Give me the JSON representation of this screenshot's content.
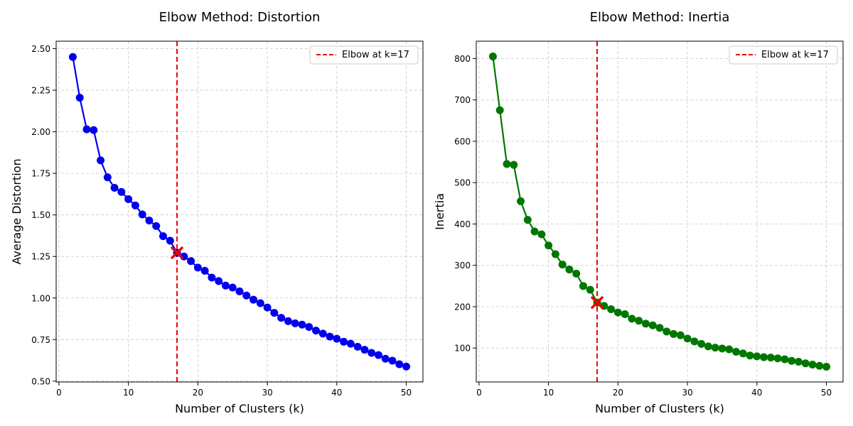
{
  "chart_data": [
    {
      "type": "line",
      "title": "Elbow Method: Distortion",
      "xlabel": "Number of Clusters (k)",
      "ylabel": "Average Distortion",
      "xlim": [
        -0.4,
        52.4
      ],
      "ylim": [
        0.495,
        2.545
      ],
      "xticks": [
        0,
        10,
        20,
        30,
        40,
        50
      ],
      "yticks": [
        0.5,
        0.75,
        1.0,
        1.25,
        1.5,
        1.75,
        2.0,
        2.25,
        2.5
      ],
      "ytick_labels": [
        "0.50",
        "0.75",
        "1.00",
        "1.25",
        "1.50",
        "1.75",
        "2.00",
        "2.25",
        "2.50"
      ],
      "grid": true,
      "legend_position": "top-right",
      "color": "#0000ee",
      "series": [
        {
          "x": [
            2,
            3,
            4,
            5,
            6,
            7,
            8,
            9,
            10,
            11,
            12,
            13,
            14,
            15,
            16,
            17,
            18,
            19,
            20,
            21,
            22,
            23,
            24,
            25,
            26,
            27,
            28,
            29,
            30,
            31,
            32,
            33,
            34,
            35,
            36,
            37,
            38,
            39,
            40,
            41,
            42,
            43,
            44,
            45,
            46,
            47,
            48,
            49,
            50
          ],
          "values": [
            2.45,
            2.205,
            2.015,
            2.01,
            1.828,
            1.726,
            1.663,
            1.638,
            1.595,
            1.557,
            1.503,
            1.466,
            1.433,
            1.372,
            1.345,
            1.272,
            1.25,
            1.222,
            1.183,
            1.164,
            1.123,
            1.102,
            1.075,
            1.063,
            1.04,
            1.015,
            0.99,
            0.969,
            0.943,
            0.911,
            0.881,
            0.861,
            0.848,
            0.84,
            0.826,
            0.804,
            0.786,
            0.768,
            0.755,
            0.737,
            0.725,
            0.707,
            0.689,
            0.67,
            0.657,
            0.635,
            0.623,
            0.602,
            0.588
          ]
        }
      ],
      "elbow": {
        "k": 17,
        "value": 1.272,
        "label": "Elbow at k=17",
        "color": "#ee0000"
      }
    },
    {
      "type": "line",
      "title": "Elbow Method: Inertia",
      "xlabel": "Number of Clusters (k)",
      "ylabel": "Inertia",
      "xlim": [
        -0.4,
        52.4
      ],
      "ylim": [
        18,
        842
      ],
      "xticks": [
        0,
        10,
        20,
        30,
        40,
        50
      ],
      "yticks": [
        100,
        200,
        300,
        400,
        500,
        600,
        700,
        800
      ],
      "ytick_labels": [
        "100",
        "200",
        "300",
        "400",
        "500",
        "600",
        "700",
        "800"
      ],
      "grid": true,
      "legend_position": "top-right",
      "color": "#007700",
      "series": [
        {
          "x": [
            2,
            3,
            4,
            5,
            6,
            7,
            8,
            9,
            10,
            11,
            12,
            13,
            14,
            15,
            16,
            17,
            18,
            19,
            20,
            21,
            22,
            23,
            24,
            25,
            26,
            27,
            28,
            29,
            30,
            31,
            32,
            33,
            34,
            35,
            36,
            37,
            38,
            39,
            40,
            41,
            42,
            43,
            44,
            45,
            46,
            47,
            48,
            49,
            50
          ],
          "values": [
            805,
            675,
            545,
            543,
            455,
            410,
            382,
            375,
            348,
            327,
            302,
            290,
            280,
            250,
            241,
            210,
            202,
            194,
            186,
            182,
            171,
            166,
            159,
            155,
            149,
            140,
            134,
            131,
            123,
            116,
            110,
            104,
            101,
            99,
            97,
            91,
            87,
            82,
            80,
            78,
            77,
            75,
            73,
            69,
            67,
            63,
            60,
            57,
            55
          ]
        }
      ],
      "elbow": {
        "k": 17,
        "value": 210,
        "label": "Elbow at k=17",
        "color": "#ee0000"
      }
    }
  ]
}
